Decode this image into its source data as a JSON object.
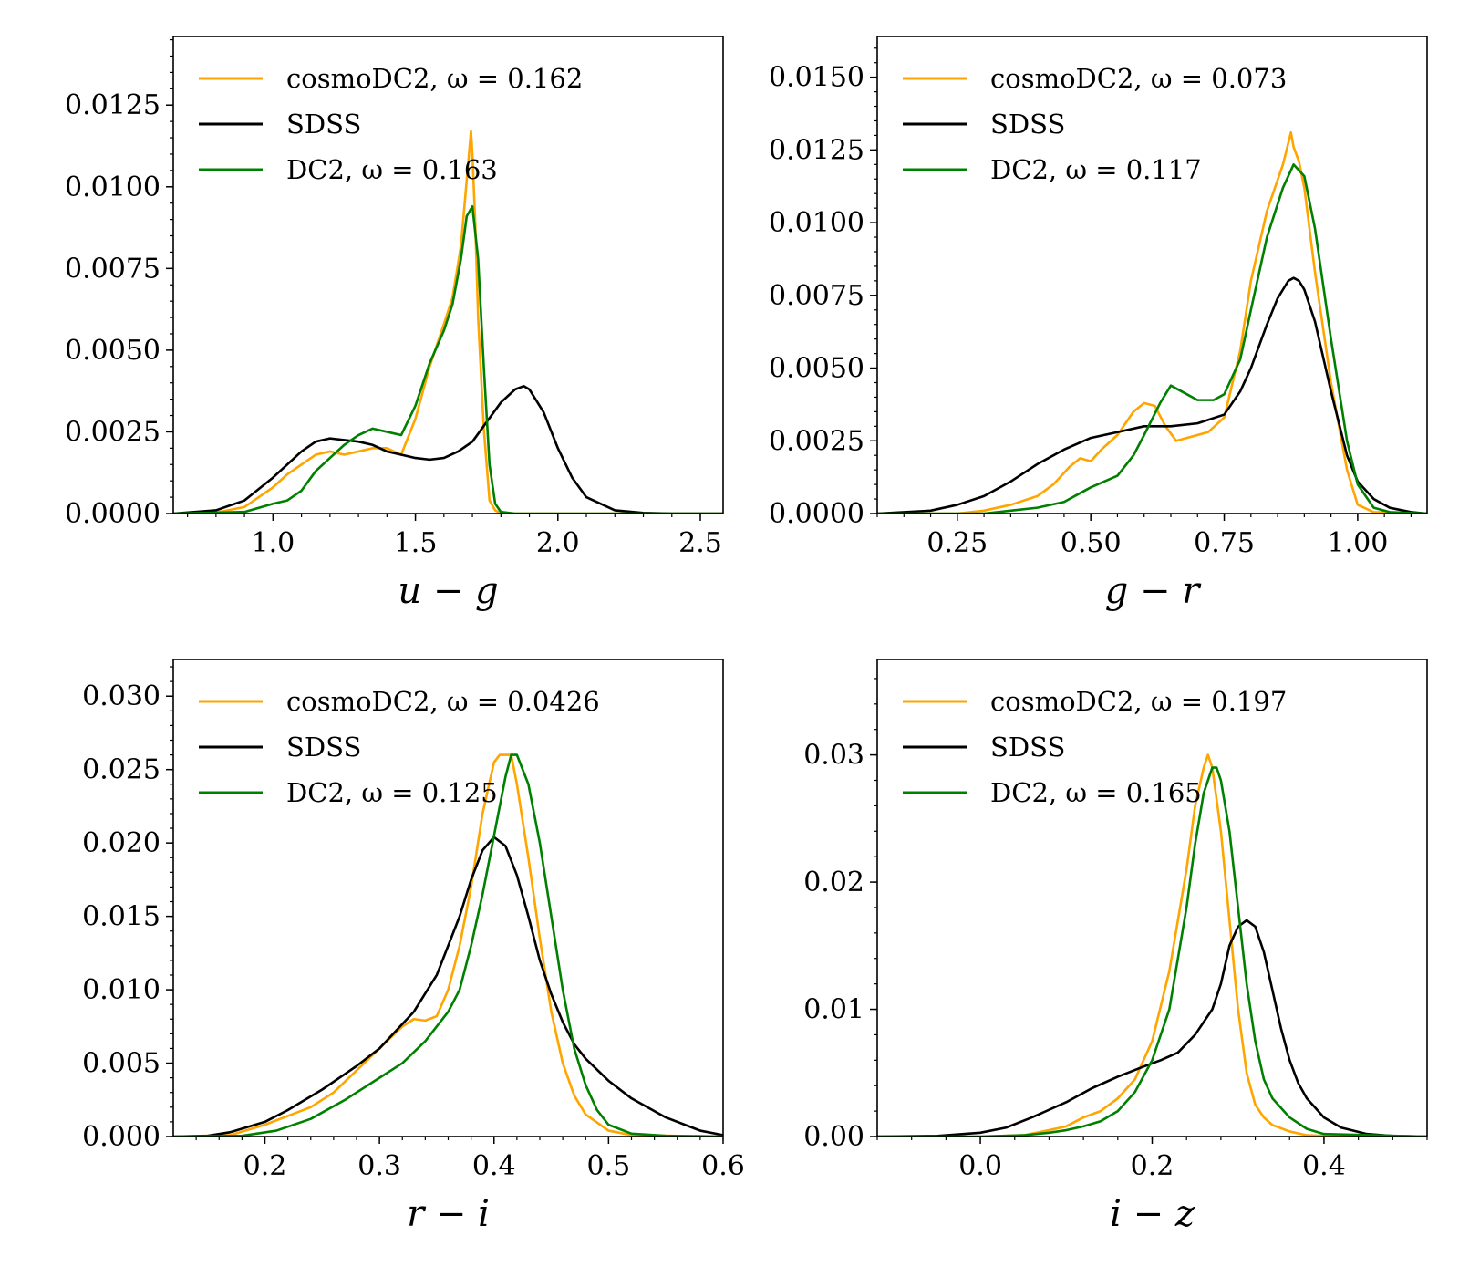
{
  "colors": {
    "cosmoDC2": "#FFA500",
    "SDSS": "#000000",
    "DC2": "#008000"
  },
  "chart_data": [
    {
      "type": "line",
      "title": "",
      "xlabel": "u − g",
      "ylabel": "",
      "xlim": [
        0.65,
        2.58
      ],
      "ylim": [
        0,
        0.0146
      ],
      "xticks": [
        1.0,
        1.5,
        2.0,
        2.5
      ],
      "xtick_labels": [
        "1.0",
        "1.5",
        "2.0",
        "2.5"
      ],
      "yticks": [
        0,
        0.0025,
        0.005,
        0.0075,
        0.01,
        0.0125
      ],
      "ytick_labels": [
        "0.0000",
        "0.0025",
        "0.0050",
        "0.0075",
        "0.0100",
        "0.0125"
      ],
      "legend_position": "top-left",
      "legend": [
        "cosmoDC2, ω = 0.162",
        "SDSS",
        "DC2, ω = 0.163"
      ],
      "series": [
        {
          "name": "cosmoDC2",
          "omega": "0.162",
          "color": "#FFA500",
          "x": [
            0.65,
            0.8,
            0.9,
            1.0,
            1.05,
            1.1,
            1.15,
            1.2,
            1.25,
            1.3,
            1.35,
            1.4,
            1.45,
            1.5,
            1.55,
            1.6,
            1.63,
            1.66,
            1.68,
            1.695,
            1.7,
            1.71,
            1.72,
            1.74,
            1.76,
            1.78,
            1.8,
            1.85,
            2.0,
            2.58
          ],
          "y": [
            0,
            3e-05,
            0.0002,
            0.0008,
            0.0012,
            0.0015,
            0.0018,
            0.0019,
            0.0018,
            0.0019,
            0.002,
            0.002,
            0.0018,
            0.0029,
            0.0045,
            0.0058,
            0.0066,
            0.0082,
            0.0102,
            0.0117,
            0.011,
            0.0089,
            0.006,
            0.0026,
            0.0004,
            0.0001,
            0,
            0,
            0,
            0
          ]
        },
        {
          "name": "SDSS",
          "color": "#000000",
          "x": [
            0.65,
            0.8,
            0.9,
            1.0,
            1.1,
            1.15,
            1.2,
            1.25,
            1.3,
            1.35,
            1.4,
            1.45,
            1.5,
            1.55,
            1.6,
            1.65,
            1.7,
            1.75,
            1.8,
            1.85,
            1.88,
            1.9,
            1.95,
            2.0,
            2.05,
            2.1,
            2.2,
            2.3,
            2.4,
            2.58
          ],
          "y": [
            0,
            0.0001,
            0.0004,
            0.0011,
            0.0019,
            0.0022,
            0.0023,
            0.00225,
            0.0022,
            0.0021,
            0.0019,
            0.0018,
            0.0017,
            0.00165,
            0.0017,
            0.0019,
            0.0022,
            0.0028,
            0.0034,
            0.0038,
            0.0039,
            0.0038,
            0.0031,
            0.002,
            0.0011,
            0.0005,
            0.0001,
            2e-05,
            0,
            0
          ]
        },
        {
          "name": "DC2",
          "omega": "0.163",
          "color": "#008000",
          "x": [
            0.65,
            0.9,
            1.0,
            1.05,
            1.1,
            1.15,
            1.2,
            1.25,
            1.3,
            1.35,
            1.4,
            1.45,
            1.5,
            1.55,
            1.6,
            1.63,
            1.66,
            1.68,
            1.7,
            1.72,
            1.74,
            1.76,
            1.78,
            1.8,
            1.85,
            2.0,
            2.58
          ],
          "y": [
            0,
            5e-05,
            0.0003,
            0.0004,
            0.0007,
            0.0013,
            0.0017,
            0.0021,
            0.0024,
            0.0026,
            0.0025,
            0.0024,
            0.0033,
            0.0046,
            0.0056,
            0.0064,
            0.0078,
            0.0091,
            0.0094,
            0.0078,
            0.0045,
            0.0015,
            0.0003,
            5e-05,
            0,
            0,
            0
          ]
        }
      ]
    },
    {
      "type": "line",
      "title": "",
      "xlabel": "g − r",
      "ylabel": "",
      "xlim": [
        0.1,
        1.13
      ],
      "ylim": [
        0,
        0.0164
      ],
      "xticks": [
        0.25,
        0.5,
        0.75,
        1.0
      ],
      "xtick_labels": [
        "0.25",
        "0.50",
        "0.75",
        "1.00"
      ],
      "yticks": [
        0,
        0.0025,
        0.005,
        0.0075,
        0.01,
        0.0125,
        0.015
      ],
      "ytick_labels": [
        "0.0000",
        "0.0025",
        "0.0050",
        "0.0075",
        "0.0100",
        "0.0125",
        "0.0150"
      ],
      "legend_position": "top-left",
      "legend": [
        "cosmoDC2, ω = 0.073",
        "SDSS",
        "DC2, ω = 0.117"
      ],
      "series": [
        {
          "name": "cosmoDC2",
          "omega": "0.073",
          "color": "#FFA500",
          "x": [
            0.1,
            0.25,
            0.3,
            0.35,
            0.4,
            0.43,
            0.46,
            0.48,
            0.5,
            0.52,
            0.55,
            0.58,
            0.6,
            0.62,
            0.64,
            0.66,
            0.68,
            0.72,
            0.75,
            0.78,
            0.8,
            0.83,
            0.86,
            0.875,
            0.88,
            0.89,
            0.9,
            0.92,
            0.95,
            0.98,
            1.0,
            1.03,
            1.13
          ],
          "y": [
            0,
            0,
            0.0001,
            0.0003,
            0.0006,
            0.001,
            0.0016,
            0.0019,
            0.0018,
            0.0022,
            0.0027,
            0.0035,
            0.0038,
            0.0037,
            0.003,
            0.0025,
            0.0026,
            0.0028,
            0.0033,
            0.0056,
            0.008,
            0.0104,
            0.012,
            0.0131,
            0.0126,
            0.0121,
            0.0112,
            0.0083,
            0.0045,
            0.0015,
            0.0003,
            5e-05,
            0
          ]
        },
        {
          "name": "SDSS",
          "color": "#000000",
          "x": [
            0.1,
            0.2,
            0.25,
            0.3,
            0.35,
            0.4,
            0.45,
            0.5,
            0.55,
            0.6,
            0.65,
            0.7,
            0.75,
            0.78,
            0.8,
            0.83,
            0.85,
            0.87,
            0.88,
            0.89,
            0.9,
            0.92,
            0.95,
            0.98,
            1.0,
            1.03,
            1.06,
            1.1,
            1.13
          ],
          "y": [
            0,
            0.0001,
            0.0003,
            0.0006,
            0.0011,
            0.0017,
            0.0022,
            0.0026,
            0.0028,
            0.003,
            0.003,
            0.0031,
            0.0034,
            0.0042,
            0.005,
            0.0065,
            0.0074,
            0.008,
            0.0081,
            0.008,
            0.0077,
            0.0066,
            0.0042,
            0.002,
            0.0011,
            0.0005,
            0.0002,
            5e-05,
            0
          ]
        },
        {
          "name": "DC2",
          "omega": "0.117",
          "color": "#008000",
          "x": [
            0.1,
            0.3,
            0.35,
            0.4,
            0.45,
            0.48,
            0.5,
            0.55,
            0.58,
            0.6,
            0.63,
            0.65,
            0.67,
            0.7,
            0.73,
            0.75,
            0.78,
            0.8,
            0.83,
            0.86,
            0.88,
            0.9,
            0.92,
            0.95,
            0.98,
            1.0,
            1.03,
            1.06,
            1.13
          ],
          "y": [
            0,
            0,
            0.0001,
            0.0002,
            0.0004,
            0.0007,
            0.0009,
            0.0013,
            0.002,
            0.0027,
            0.0038,
            0.0044,
            0.0042,
            0.0039,
            0.0039,
            0.0041,
            0.0053,
            0.007,
            0.0095,
            0.0112,
            0.012,
            0.0116,
            0.0098,
            0.006,
            0.0025,
            0.001,
            0.0002,
            5e-05,
            0
          ]
        }
      ]
    },
    {
      "type": "line",
      "title": "",
      "xlabel": "r − i",
      "ylabel": "",
      "xlim": [
        0.12,
        0.6
      ],
      "ylim": [
        0,
        0.0325
      ],
      "xticks": [
        0.2,
        0.3,
        0.4,
        0.5,
        0.6
      ],
      "xtick_labels": [
        "0.2",
        "0.3",
        "0.4",
        "0.5",
        "0.6"
      ],
      "yticks": [
        0,
        0.005,
        0.01,
        0.015,
        0.02,
        0.025,
        0.03
      ],
      "ytick_labels": [
        "0.000",
        "0.005",
        "0.010",
        "0.015",
        "0.020",
        "0.025",
        "0.030"
      ],
      "legend_position": "top-left",
      "legend": [
        "cosmoDC2, ω = 0.0426",
        "SDSS",
        "DC2, ω = 0.125"
      ],
      "series": [
        {
          "name": "cosmoDC2",
          "omega": "0.0426",
          "color": "#FFA500",
          "x": [
            0.12,
            0.17,
            0.2,
            0.22,
            0.24,
            0.26,
            0.28,
            0.3,
            0.32,
            0.33,
            0.34,
            0.35,
            0.36,
            0.37,
            0.38,
            0.39,
            0.4,
            0.405,
            0.41,
            0.415,
            0.42,
            0.43,
            0.44,
            0.45,
            0.46,
            0.47,
            0.48,
            0.5,
            0.52,
            0.6
          ],
          "y": [
            0,
            0.0001,
            0.0008,
            0.0014,
            0.002,
            0.003,
            0.0045,
            0.006,
            0.0075,
            0.008,
            0.0079,
            0.0082,
            0.01,
            0.013,
            0.017,
            0.022,
            0.0255,
            0.026,
            0.026,
            0.026,
            0.024,
            0.019,
            0.0135,
            0.0085,
            0.005,
            0.0028,
            0.0015,
            0.0004,
            0.0001,
            0
          ]
        },
        {
          "name": "SDSS",
          "color": "#000000",
          "x": [
            0.12,
            0.15,
            0.17,
            0.2,
            0.22,
            0.25,
            0.28,
            0.3,
            0.33,
            0.35,
            0.37,
            0.38,
            0.39,
            0.4,
            0.41,
            0.42,
            0.43,
            0.44,
            0.45,
            0.46,
            0.47,
            0.48,
            0.5,
            0.52,
            0.55,
            0.58,
            0.6
          ],
          "y": [
            0,
            5e-05,
            0.0003,
            0.001,
            0.0018,
            0.0032,
            0.0048,
            0.006,
            0.0085,
            0.011,
            0.015,
            0.0175,
            0.0195,
            0.0204,
            0.0198,
            0.0178,
            0.015,
            0.012,
            0.0097,
            0.0078,
            0.0063,
            0.0053,
            0.0038,
            0.0026,
            0.0013,
            0.0004,
            0.0001
          ]
        },
        {
          "name": "DC2",
          "omega": "0.125",
          "color": "#008000",
          "x": [
            0.12,
            0.18,
            0.21,
            0.24,
            0.27,
            0.3,
            0.32,
            0.34,
            0.36,
            0.37,
            0.38,
            0.39,
            0.4,
            0.41,
            0.415,
            0.42,
            0.43,
            0.44,
            0.45,
            0.46,
            0.47,
            0.48,
            0.49,
            0.5,
            0.52,
            0.55,
            0.6
          ],
          "y": [
            0,
            5e-05,
            0.0004,
            0.0012,
            0.0025,
            0.004,
            0.005,
            0.0065,
            0.0085,
            0.01,
            0.013,
            0.0165,
            0.0205,
            0.0245,
            0.026,
            0.026,
            0.024,
            0.02,
            0.015,
            0.01,
            0.006,
            0.0035,
            0.0018,
            0.0008,
            0.0002,
            5e-05,
            0
          ]
        }
      ]
    },
    {
      "type": "line",
      "title": "",
      "xlabel": "i − z",
      "ylabel": "",
      "xlim": [
        -0.12,
        0.52
      ],
      "ylim": [
        0,
        0.0375
      ],
      "xticks": [
        0.0,
        0.2,
        0.4
      ],
      "xtick_labels": [
        "0.0",
        "0.2",
        "0.4"
      ],
      "yticks": [
        0,
        0.01,
        0.02,
        0.03
      ],
      "ytick_labels": [
        "0.00",
        "0.01",
        "0.02",
        "0.03"
      ],
      "legend_position": "top-left",
      "legend": [
        "cosmoDC2, ω = 0.197",
        "SDSS",
        "DC2, ω = 0.165"
      ],
      "series": [
        {
          "name": "cosmoDC2",
          "omega": "0.197",
          "color": "#FFA500",
          "x": [
            -0.12,
            0.0,
            0.05,
            0.08,
            0.1,
            0.12,
            0.14,
            0.16,
            0.18,
            0.2,
            0.22,
            0.24,
            0.25,
            0.26,
            0.265,
            0.27,
            0.28,
            0.29,
            0.3,
            0.31,
            0.32,
            0.33,
            0.34,
            0.36,
            0.38,
            0.42,
            0.52
          ],
          "y": [
            0,
            0,
            0.0001,
            0.0005,
            0.0008,
            0.0015,
            0.002,
            0.003,
            0.0045,
            0.0075,
            0.013,
            0.021,
            0.026,
            0.029,
            0.03,
            0.029,
            0.024,
            0.017,
            0.01,
            0.005,
            0.0025,
            0.0015,
            0.0009,
            0.0004,
            0.0001,
            0,
            0
          ]
        },
        {
          "name": "SDSS",
          "color": "#000000",
          "x": [
            -0.12,
            -0.05,
            0.0,
            0.03,
            0.06,
            0.1,
            0.13,
            0.16,
            0.19,
            0.21,
            0.23,
            0.25,
            0.27,
            0.28,
            0.29,
            0.3,
            0.31,
            0.32,
            0.33,
            0.34,
            0.35,
            0.36,
            0.37,
            0.38,
            0.4,
            0.42,
            0.45,
            0.48,
            0.52
          ],
          "y": [
            0,
            5e-05,
            0.0003,
            0.0007,
            0.0015,
            0.0027,
            0.0038,
            0.0047,
            0.0055,
            0.006,
            0.0066,
            0.008,
            0.01,
            0.012,
            0.015,
            0.0165,
            0.017,
            0.0165,
            0.0145,
            0.0115,
            0.0085,
            0.006,
            0.0042,
            0.003,
            0.0015,
            0.0007,
            0.0002,
            5e-05,
            0
          ]
        },
        {
          "name": "DC2",
          "omega": "0.165",
          "color": "#008000",
          "x": [
            -0.12,
            0.0,
            0.05,
            0.08,
            0.1,
            0.12,
            0.14,
            0.16,
            0.18,
            0.2,
            0.22,
            0.24,
            0.25,
            0.26,
            0.27,
            0.275,
            0.28,
            0.29,
            0.3,
            0.31,
            0.32,
            0.33,
            0.34,
            0.36,
            0.38,
            0.4,
            0.52
          ],
          "y": [
            0,
            0,
            0.0001,
            0.0003,
            0.0005,
            0.0008,
            0.0012,
            0.002,
            0.0035,
            0.006,
            0.01,
            0.018,
            0.023,
            0.027,
            0.029,
            0.029,
            0.028,
            0.024,
            0.018,
            0.012,
            0.0075,
            0.0045,
            0.003,
            0.0015,
            0.0006,
            0.0002,
            0
          ]
        }
      ]
    }
  ]
}
